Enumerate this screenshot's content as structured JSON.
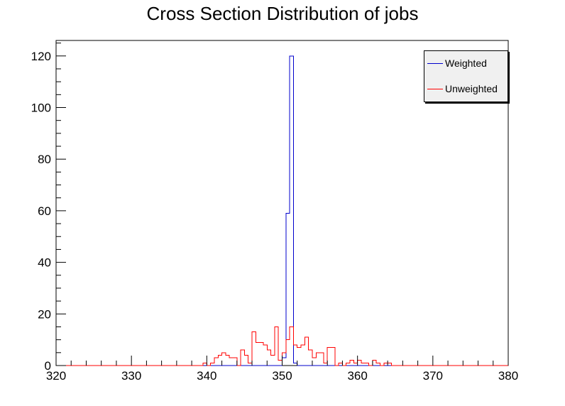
{
  "chart_data": {
    "type": "histogram",
    "title": "Cross Section Distribution of jobs",
    "xlabel": "",
    "ylabel": "",
    "xlim": [
      320,
      380
    ],
    "ylim": [
      0,
      126
    ],
    "xticks": [
      320,
      330,
      340,
      350,
      360,
      370,
      380
    ],
    "yticks": [
      0,
      20,
      40,
      60,
      80,
      100,
      120
    ],
    "bin_width": 0.5,
    "legend_position": "top-right",
    "series": [
      {
        "name": "Weighted",
        "color": "#0000cc",
        "bin_starts": [
          350.0,
          350.5,
          351.0,
          351.5
        ],
        "values": [
          3,
          59,
          120,
          1
        ]
      },
      {
        "name": "Unweighted",
        "color": "#ff0000",
        "bin_starts": [
          339.5,
          340.5,
          341.0,
          341.5,
          342.0,
          342.5,
          343.0,
          343.5,
          344.0,
          344.5,
          345.0,
          345.5,
          346.0,
          346.5,
          347.0,
          347.5,
          348.0,
          348.5,
          349.0,
          349.5,
          350.0,
          350.5,
          351.0,
          351.5,
          352.0,
          352.5,
          353.0,
          353.5,
          354.0,
          354.5,
          355.0,
          355.5,
          356.0,
          356.5,
          357.0,
          357.5,
          358.0,
          358.5,
          359.0,
          359.5,
          360.0,
          360.5,
          361.0,
          361.5,
          362.0,
          362.5,
          363.0,
          363.5,
          364.0,
          364.5
        ],
        "values": [
          1,
          1,
          3,
          4,
          5,
          4,
          3,
          3,
          0,
          6,
          4,
          1,
          13,
          9,
          9,
          8,
          6,
          4,
          15,
          2,
          5,
          10,
          15,
          8,
          7,
          8,
          11,
          6,
          3,
          5,
          5,
          1,
          7,
          7,
          0,
          1,
          0,
          1,
          2,
          1,
          2,
          1,
          1,
          0,
          2,
          1,
          0,
          1,
          1,
          0
        ]
      }
    ]
  }
}
